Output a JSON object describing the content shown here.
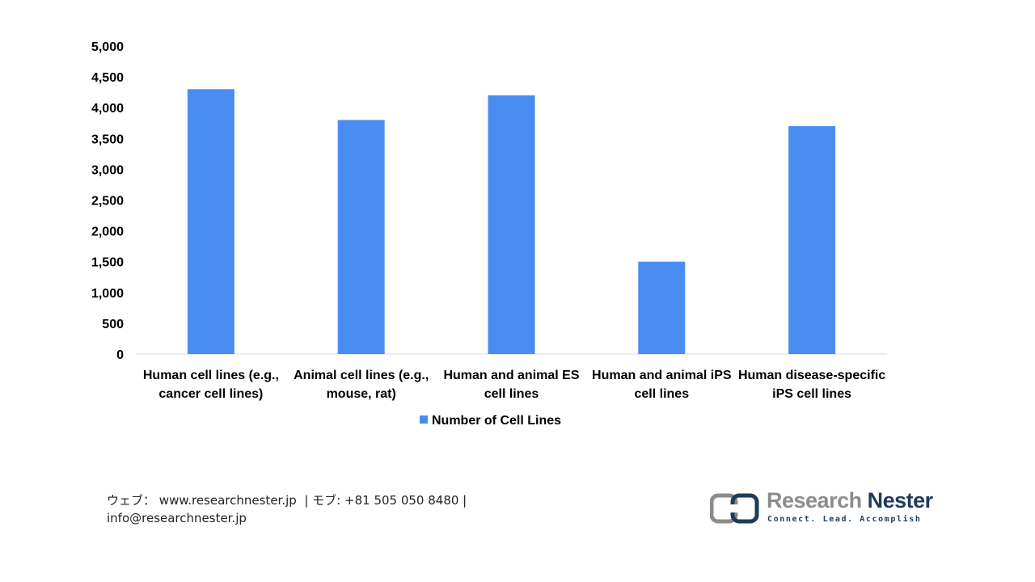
{
  "chart_data": {
    "type": "bar",
    "categories": [
      [
        "Human cell lines (e.g.,",
        "cancer cell lines)"
      ],
      [
        "Animal cell lines (e.g.,",
        "mouse, rat)"
      ],
      [
        "Human and animal ES",
        "cell lines"
      ],
      [
        "Human and animal iPS",
        "cell lines"
      ],
      [
        "Human disease-specific",
        "iPS cell lines"
      ]
    ],
    "series": [
      {
        "name": "Number of Cell Lines",
        "values": [
          4300,
          3800,
          4200,
          1500,
          3700
        ]
      }
    ],
    "ylim": [
      0,
      5000
    ],
    "yticks": [
      0,
      500,
      1000,
      1500,
      2000,
      2500,
      3000,
      3500,
      4000,
      4500,
      5000
    ],
    "ytick_labels": [
      "0",
      "500",
      "1,000",
      "1,500",
      "2,000",
      "2,500",
      "3,000",
      "3,500",
      "4,000",
      "4,500",
      "5,000"
    ],
    "legend_position": "bottom",
    "grid": false,
    "bar_color": "#4a8df0"
  },
  "footer": {
    "web_label": "ウェブ：",
    "web_url": "www.researchnester.jp",
    "phone_label": "| モブ:",
    "phone": "+81 505 050 8480 |",
    "email": "info@researchnester.jp"
  },
  "brand": {
    "name_part1": "Research",
    "name_part2": "Nester",
    "tagline": "Connect. Lead. Accomplish"
  }
}
